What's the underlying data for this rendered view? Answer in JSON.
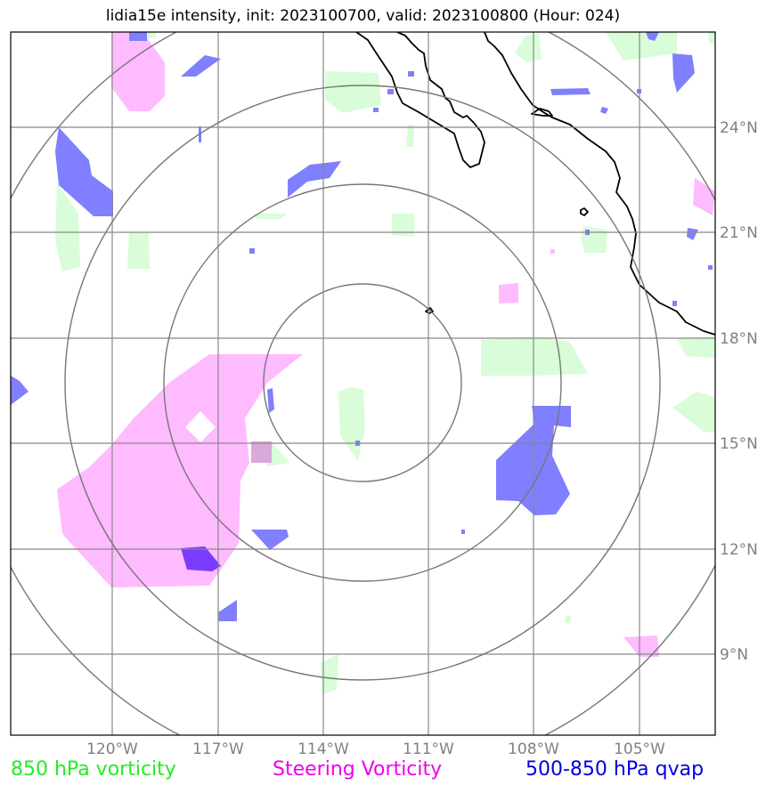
{
  "title": "lidia15e intensity, init: 2023100700, valid: 2023100800 (Hour: 024)",
  "lon_ticks": [
    "120°W",
    "117°W",
    "114°W",
    "111°W",
    "108°W",
    "105°W"
  ],
  "lat_ticks": [
    "24°N",
    "21°N",
    "18°N",
    "15°N",
    "12°N",
    "9°N"
  ],
  "legend": [
    {
      "label": "850 hPa vorticity",
      "color": "#22ee22"
    },
    {
      "label": "Steering Vorticity",
      "color": "#ee00ee"
    },
    {
      "label": "500-850 hPa qvap",
      "color": "#0000dd"
    }
  ],
  "colors": {
    "vorticity_850_fill": "#d9fcd9",
    "steering_vorticity_fill": "#ffbbff",
    "qvap_fill": "#7f7fff",
    "grid": "#888888",
    "coastline": "#000000",
    "range_rings": "#777777"
  }
}
